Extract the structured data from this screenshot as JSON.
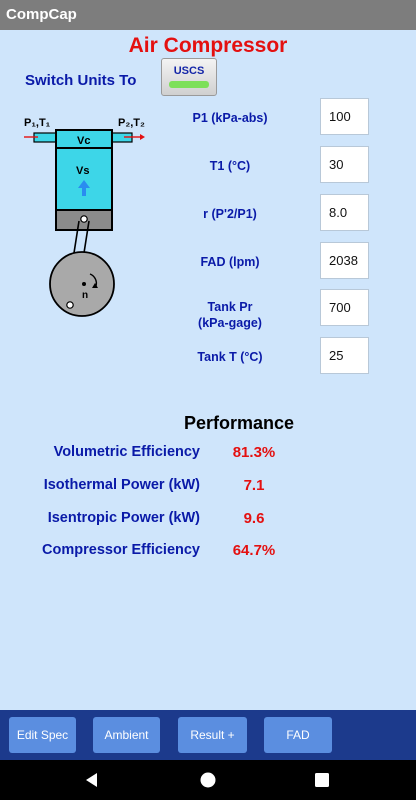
{
  "app": {
    "title": "CompCap"
  },
  "header": {
    "title": "Air Compressor",
    "switch_units_label": "Switch Units To",
    "units_button": "USCS"
  },
  "diagram": {
    "labels": {
      "p1t1": "P₁,T₁",
      "p2t2": "P₂,T₂",
      "vc": "Vc",
      "vs": "Vs",
      "n": "n"
    }
  },
  "inputs": [
    {
      "label": "P1 (kPa-abs)",
      "value": "100"
    },
    {
      "label": "T1 (°C)",
      "value": "30"
    },
    {
      "label": "r (P'2/P1)",
      "value": "8.0"
    },
    {
      "label": "FAD (lpm)",
      "value": "2038"
    },
    {
      "label": "Tank Pr\n(kPa-gage)",
      "label_line1": "Tank Pr",
      "label_line2": "(kPa-gage)",
      "value": "700"
    },
    {
      "label": "Tank T (°C)",
      "value": "25"
    }
  ],
  "performance": {
    "title": "Performance",
    "rows": [
      {
        "label": "Volumetric Efficiency",
        "value": "81.3%"
      },
      {
        "label": "Isothermal Power (kW)",
        "value": "7.1"
      },
      {
        "label": "Isentropic Power (kW)",
        "value": "9.6"
      },
      {
        "label": "Compressor Efficiency",
        "value": "64.7%"
      }
    ]
  },
  "bottom_nav": [
    "Edit Spec",
    "Ambient",
    "Result +",
    "FAD"
  ],
  "colors": {
    "background": "#cfe5fb",
    "accent_red": "#e41010",
    "label_blue": "#0a1aa8",
    "bar": "#1c3a8c",
    "button": "#5b8ee0"
  },
  "system_nav": {
    "back": "back-icon",
    "home": "home-icon",
    "recents": "recents-icon"
  }
}
